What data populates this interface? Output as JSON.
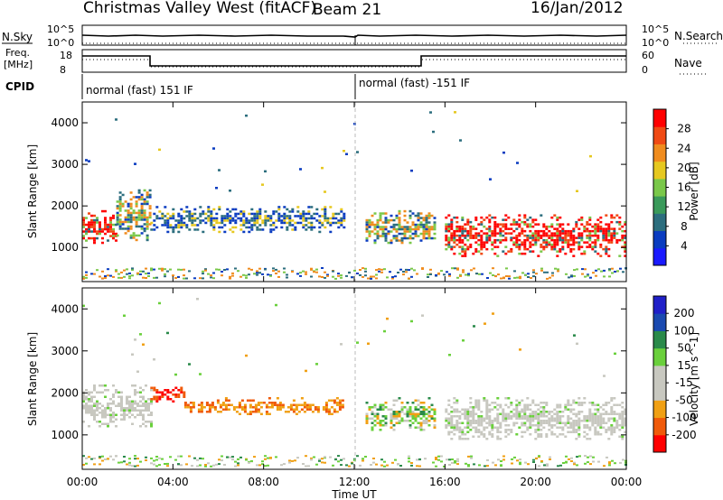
{
  "header": {
    "station": "Christmas Valley West (fitACF)",
    "beam": "Beam 21",
    "date": "16/Jan/2012"
  },
  "top_panels": {
    "nsky": {
      "left_label": "N.Sky",
      "right_label": "N.Search",
      "left_ticks": [
        "10^5",
        "10^0"
      ],
      "right_ticks": [
        "10^5",
        "10^0"
      ]
    },
    "freq": {
      "left_label_1": "Freq.",
      "left_label_2": "[MHz]",
      "right_label": "Nave",
      "left_ticks": [
        "18",
        "8"
      ],
      "right_ticks": [
        "60",
        "0"
      ]
    },
    "cpid": {
      "label": "CPID",
      "segments": [
        "normal (fast) 151 IF",
        "normal (fast) -151 IF"
      ]
    }
  },
  "colors": {
    "power_scale": [
      "#1a1aff",
      "#0a3cc0",
      "#2c6e7e",
      "#3a9a5a",
      "#7ac84a",
      "#e6c820",
      "#f08c1e",
      "#f04a14",
      "#ff0000"
    ],
    "velocity_scale": [
      "#ff0000",
      "#f05a0a",
      "#f0a014",
      "#c8c8c0",
      "#c8c8c0",
      "#6ad03c",
      "#2a8a4a",
      "#1a4ab0",
      "#2020c8"
    ]
  },
  "chart_data": [
    {
      "type": "heatmap",
      "name_role": "power panel",
      "xlabel": "",
      "ylabel": "Slant Range [km]",
      "xlim": [
        0,
        24
      ],
      "ylim": [
        180,
        4500
      ],
      "yticks": [
        1000,
        2000,
        3000,
        4000
      ],
      "ytick_labels": [
        "1000",
        "2000",
        "3000",
        "4000"
      ],
      "colorbar": {
        "label": "Power [dB]",
        "range": [
          0,
          32
        ],
        "ticks": [
          "4",
          "8",
          "12",
          "16",
          "20",
          "24",
          "28"
        ]
      },
      "features": [
        {
          "t0": 0.0,
          "t1": 1.5,
          "r0": 1100,
          "r1": 1900,
          "level": "strong"
        },
        {
          "t0": 1.5,
          "t1": 3.0,
          "r0": 1200,
          "r1": 2400,
          "level": "medium"
        },
        {
          "t0": 3.0,
          "t1": 11.5,
          "r0": 1400,
          "r1": 2000,
          "level": "weak"
        },
        {
          "t0": 12.5,
          "t1": 15.5,
          "r0": 1100,
          "r1": 1900,
          "level": "medium"
        },
        {
          "t0": 16.0,
          "t1": 24.0,
          "r0": 800,
          "r1": 1800,
          "level": "strong"
        }
      ]
    },
    {
      "type": "heatmap",
      "name_role": "velocity panel",
      "xlabel": "Time UT",
      "ylabel": "Slant Range [km]",
      "xlim": [
        0,
        24
      ],
      "ylim": [
        180,
        4500
      ],
      "xticks": [
        0,
        4,
        8,
        12,
        16,
        20,
        24
      ],
      "xtick_labels": [
        "00:00",
        "04:00",
        "08:00",
        "12:00",
        "16:00",
        "20:00",
        "00:00"
      ],
      "yticks": [
        1000,
        2000,
        3000,
        4000
      ],
      "ytick_labels": [
        "1000",
        "2000",
        "3000",
        "4000"
      ],
      "colorbar": {
        "label": "Velocity [m s^-1]",
        "range": [
          -250,
          250
        ],
        "ticks": [
          "-200",
          "-100",
          "-50",
          "-15",
          "15",
          "50",
          "100",
          "200"
        ]
      },
      "features": [
        {
          "t0": 0.0,
          "t1": 3.0,
          "r0": 1200,
          "r1": 2200,
          "level": "ground-scatter"
        },
        {
          "t0": 3.0,
          "t1": 4.5,
          "r0": 1800,
          "r1": 2200,
          "level": "negative"
        },
        {
          "t0": 4.5,
          "t1": 11.5,
          "r0": 1500,
          "r1": 1900,
          "level": "negative-weak"
        },
        {
          "t0": 12.5,
          "t1": 15.5,
          "r0": 1100,
          "r1": 1900,
          "level": "mixed"
        },
        {
          "t0": 16.0,
          "t1": 24.0,
          "r0": 900,
          "r1": 1900,
          "level": "ground-scatter"
        }
      ]
    }
  ]
}
